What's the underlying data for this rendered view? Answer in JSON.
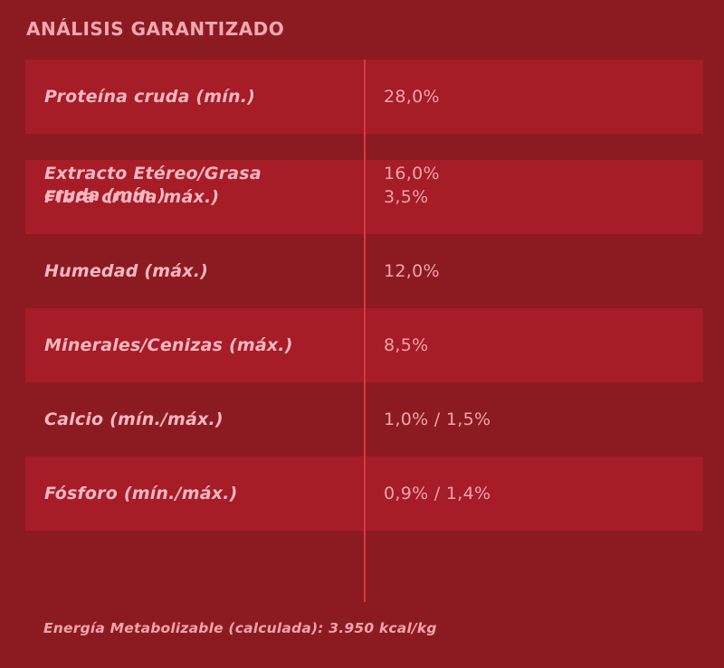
{
  "title": "ANÁLISIS GARANTIZADO",
  "rows": [
    {
      "label": "Proteína cruda (mín.)",
      "value": "28,0%"
    },
    {
      "label": "Extracto Etéreo/Grasa\ncruda (mín.)",
      "value": "16,0%"
    },
    {
      "label": "Fibra cruda máx.)",
      "value": "3,5%"
    },
    {
      "label": "Humedad (máx.)",
      "value": "12,0%"
    },
    {
      "label": "Minerales/Cenizas (máx.)",
      "value": "8,5%"
    },
    {
      "label": "Calcio (mín./máx.)",
      "value": "1,0% / 1,5%"
    },
    {
      "label": "Fósforo (mín./máx.)",
      "value": "0,9% / 1,4%"
    }
  ],
  "footer": "Energía Metabolizable (calculada): 3.950 kcal/kg",
  "colors": {
    "background": "#8c1b21",
    "row_shaded": "#a61c27",
    "text": "#f2a3ad",
    "divider": "#d63a44"
  }
}
